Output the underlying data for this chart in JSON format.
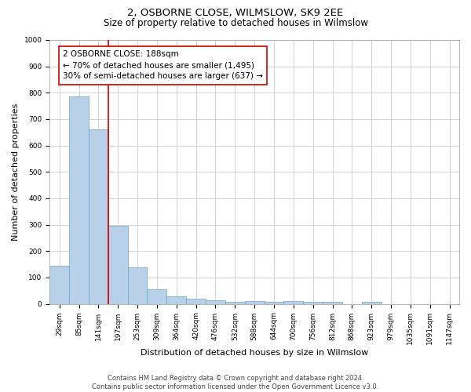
{
  "title": "2, OSBORNE CLOSE, WILMSLOW, SK9 2EE",
  "subtitle": "Size of property relative to detached houses in Wilmslow",
  "xlabel": "Distribution of detached houses by size in Wilmslow",
  "ylabel": "Number of detached properties",
  "bin_labels": [
    "29sqm",
    "85sqm",
    "141sqm",
    "197sqm",
    "253sqm",
    "309sqm",
    "364sqm",
    "420sqm",
    "476sqm",
    "532sqm",
    "588sqm",
    "644sqm",
    "700sqm",
    "756sqm",
    "812sqm",
    "868sqm",
    "923sqm",
    "979sqm",
    "1035sqm",
    "1091sqm",
    "1147sqm"
  ],
  "bar_heights": [
    143,
    785,
    660,
    296,
    138,
    55,
    28,
    19,
    14,
    9,
    10,
    9,
    11,
    9,
    8,
    0,
    9,
    0,
    0,
    0,
    0
  ],
  "bar_color": "#b8d0e8",
  "bar_edge_color": "#6ba3cb",
  "vline_color": "#cc0000",
  "annotation_text": "2 OSBORNE CLOSE: 188sqm\n← 70% of detached houses are smaller (1,495)\n30% of semi-detached houses are larger (637) →",
  "annotation_box_color": "white",
  "annotation_box_edge": "#cc0000",
  "ylim": [
    0,
    1000
  ],
  "yticks": [
    0,
    100,
    200,
    300,
    400,
    500,
    600,
    700,
    800,
    900,
    1000
  ],
  "grid_color": "#cccccc",
  "background_color": "white",
  "footnote": "Contains HM Land Registry data © Crown copyright and database right 2024.\nContains public sector information licensed under the Open Government Licence v3.0.",
  "title_fontsize": 9.5,
  "subtitle_fontsize": 8.5,
  "xlabel_fontsize": 8,
  "ylabel_fontsize": 8,
  "tick_fontsize": 6.5,
  "annotation_fontsize": 7.5,
  "footnote_fontsize": 6
}
